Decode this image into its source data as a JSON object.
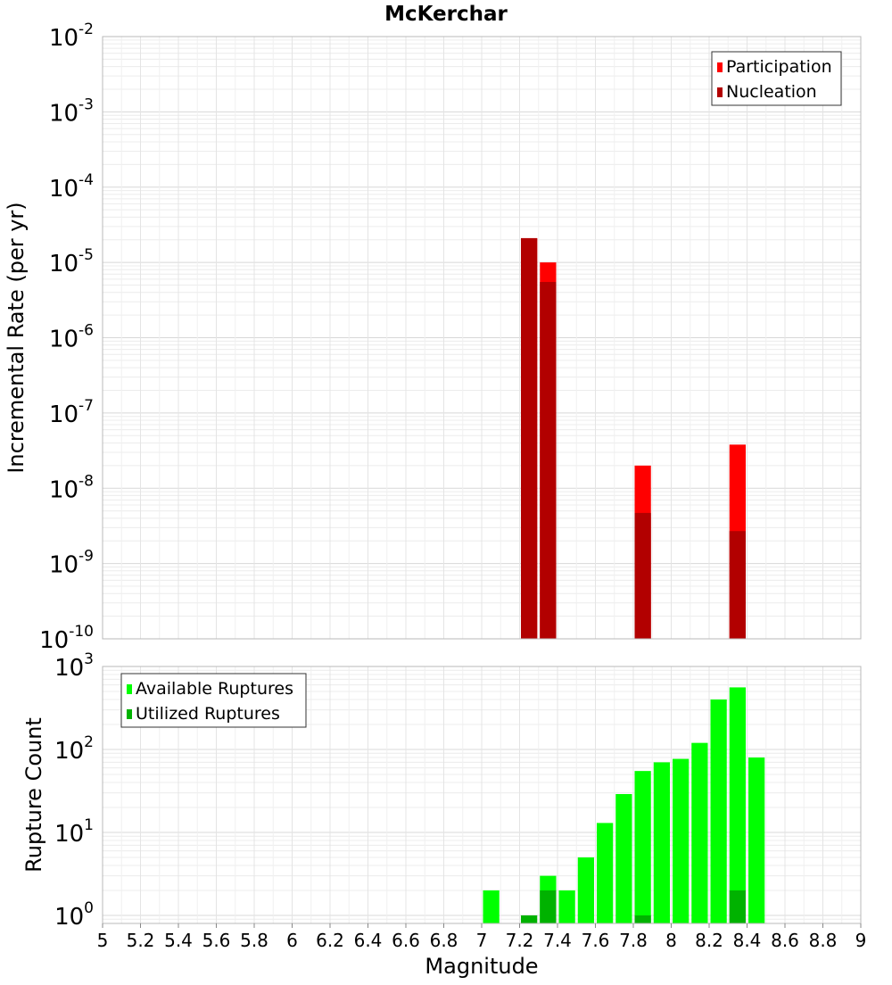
{
  "chart_data": [
    {
      "type": "bar",
      "title": "McKerchar",
      "xlabel": "",
      "ylabel": "Incremental Rate (per yr)",
      "yscale": "log",
      "ylim": [
        1e-10,
        0.01
      ],
      "y_ticks": [
        {
          "base": "10",
          "exp": "-10"
        },
        {
          "base": "10",
          "exp": "-9"
        },
        {
          "base": "10",
          "exp": "-8"
        },
        {
          "base": "10",
          "exp": "-7"
        },
        {
          "base": "10",
          "exp": "-6"
        },
        {
          "base": "10",
          "exp": "-5"
        },
        {
          "base": "10",
          "exp": "-4"
        },
        {
          "base": "10",
          "exp": "-3"
        },
        {
          "base": "10",
          "exp": "-2"
        }
      ],
      "x": [
        7.25,
        7.35,
        7.85,
        8.35
      ],
      "series": [
        {
          "name": "Participation",
          "color": "#ff0000",
          "values": [
            2.1e-05,
            1e-05,
            2e-08,
            3.8e-08
          ]
        },
        {
          "name": "Nucleation",
          "color": "#b20000",
          "values": [
            2.1e-05,
            5.5e-06,
            4.7e-09,
            2.7e-09
          ]
        }
      ],
      "legend": "top-right",
      "grid": true
    },
    {
      "type": "bar",
      "title": "",
      "xlabel": "Magnitude",
      "ylabel": "Rupture Count",
      "yscale": "log",
      "ylim": [
        0.8,
        1000
      ],
      "y_ticks": [
        {
          "base": "10",
          "exp": "0"
        },
        {
          "base": "10",
          "exp": "1"
        },
        {
          "base": "10",
          "exp": "2"
        },
        {
          "base": "10",
          "exp": "3"
        }
      ],
      "xlim": [
        5,
        9
      ],
      "x_ticks": [
        "5",
        "5.2",
        "5.4",
        "5.6",
        "5.8",
        "6",
        "6.2",
        "6.4",
        "6.6",
        "6.8",
        "7",
        "7.2",
        "7.4",
        "7.6",
        "7.8",
        "8",
        "8.2",
        "8.4",
        "8.6",
        "8.8",
        "9"
      ],
      "x": [
        7.05,
        7.25,
        7.35,
        7.45,
        7.55,
        7.65,
        7.75,
        7.85,
        7.95,
        8.05,
        8.15,
        8.25,
        8.35,
        8.45
      ],
      "series": [
        {
          "name": "Available Ruptures",
          "color": "#00ff00",
          "values": [
            2,
            null,
            3,
            2,
            5,
            13,
            29,
            55,
            70,
            77,
            120,
            400,
            560,
            80
          ]
        },
        {
          "name": "Utilized Ruptures",
          "color": "#00b200",
          "values": [
            null,
            1,
            2,
            null,
            null,
            null,
            null,
            1,
            null,
            null,
            null,
            null,
            2,
            null
          ]
        }
      ],
      "legend": "top-left",
      "grid": true
    }
  ]
}
